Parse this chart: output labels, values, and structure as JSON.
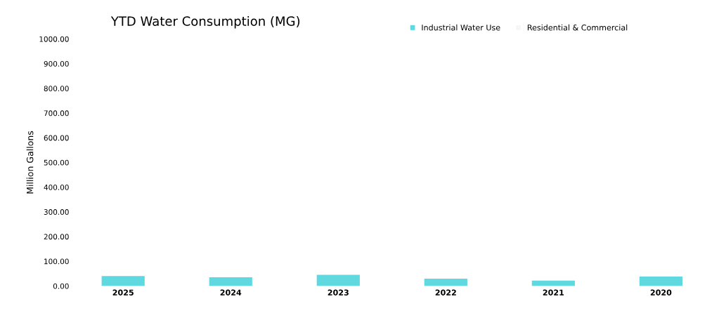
{
  "chart_data": {
    "type": "bar",
    "title": "YTD Water Consumption (MG)",
    "ylabel": "Million Gallons",
    "categories": [
      "2025",
      "2024",
      "2023",
      "2022",
      "2021",
      "2020"
    ],
    "series": [
      {
        "name": "Industrial Water Use",
        "color": "#5fd8e0",
        "values": [
          40,
          35,
          45,
          30,
          22,
          38
        ]
      },
      {
        "name": "Residential & Commercial",
        "color": "#f4f6f8",
        "values": [
          null,
          null,
          null,
          null,
          null,
          null
        ]
      }
    ],
    "ylim": [
      0,
      1000
    ],
    "yticks": [
      {
        "value": 0,
        "label": "0.00"
      },
      {
        "value": 100,
        "label": "100.00"
      },
      {
        "value": 200,
        "label": "200.00"
      },
      {
        "value": 300,
        "label": "300.00"
      },
      {
        "value": 400,
        "label": "400.00"
      },
      {
        "value": 500,
        "label": "500.00"
      },
      {
        "value": 600,
        "label": "600.00"
      },
      {
        "value": 700,
        "label": "700.00"
      },
      {
        "value": 800,
        "label": "800.00"
      },
      {
        "value": 900,
        "label": "900.00"
      },
      {
        "value": 1000,
        "label": "1000.00"
      }
    ],
    "legend": "top right"
  }
}
